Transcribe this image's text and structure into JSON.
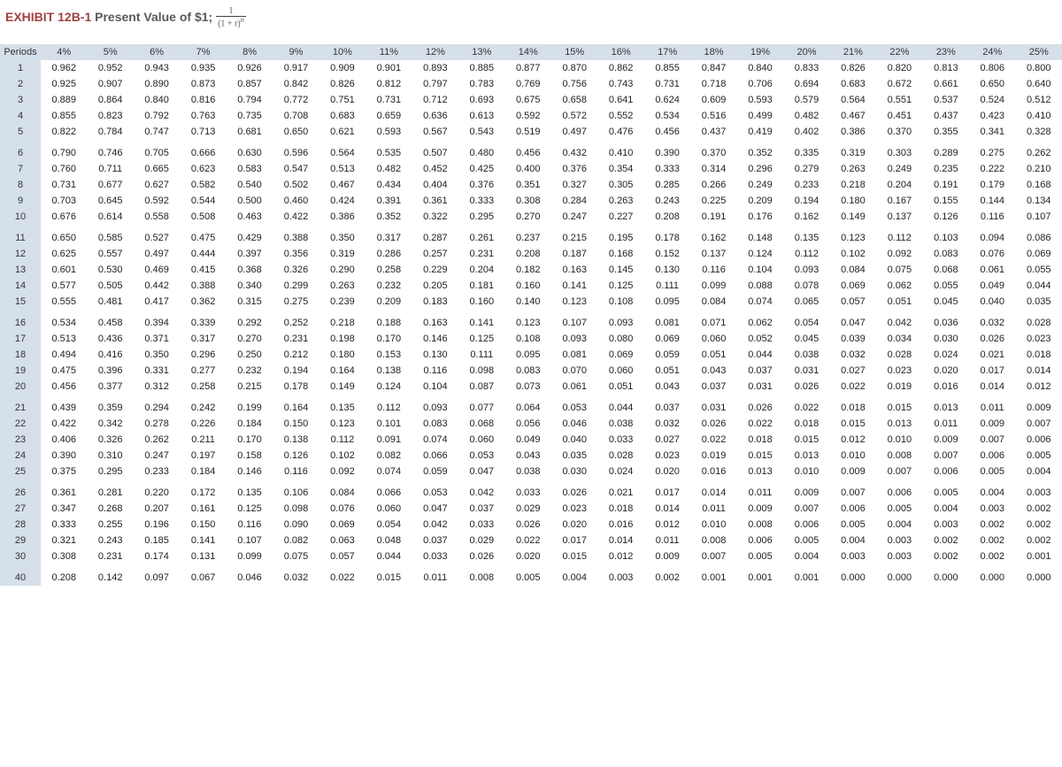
{
  "title": {
    "label": "EXHIBIT 12B-1",
    "caption": "Present Value of $1;",
    "formula_html": "<span style='display:inline-block;vertical-align:middle;text-align:center;line-height:1'><span style='display:block;border-bottom:1px solid #444;font-size:10px;padding:0 2px'>1</span><span style='display:block;font-size:10px;padding:0 2px'>(1 + r)<sup>n</sup></span></span>"
  },
  "columns": [
    "Periods",
    "4%",
    "5%",
    "6%",
    "7%",
    "8%",
    "9%",
    "10%",
    "11%",
    "12%",
    "13%",
    "14%",
    "15%",
    "16%",
    "17%",
    "18%",
    "19%",
    "20%",
    "21%",
    "22%",
    "23%",
    "24%",
    "25%"
  ],
  "breaks_after": [
    5,
    10,
    15,
    20,
    25,
    30
  ],
  "rows": [
    [
      "1",
      "0.962",
      "0.952",
      "0.943",
      "0.935",
      "0.926",
      "0.917",
      "0.909",
      "0.901",
      "0.893",
      "0.885",
      "0.877",
      "0.870",
      "0.862",
      "0.855",
      "0.847",
      "0.840",
      "0.833",
      "0.826",
      "0.820",
      "0.813",
      "0.806",
      "0.800"
    ],
    [
      "2",
      "0.925",
      "0.907",
      "0.890",
      "0.873",
      "0.857",
      "0.842",
      "0.826",
      "0.812",
      "0.797",
      "0.783",
      "0.769",
      "0.756",
      "0.743",
      "0.731",
      "0.718",
      "0.706",
      "0.694",
      "0.683",
      "0.672",
      "0.661",
      "0.650",
      "0.640"
    ],
    [
      "3",
      "0.889",
      "0.864",
      "0.840",
      "0.816",
      "0.794",
      "0.772",
      "0.751",
      "0.731",
      "0.712",
      "0.693",
      "0.675",
      "0.658",
      "0.641",
      "0.624",
      "0.609",
      "0.593",
      "0.579",
      "0.564",
      "0.551",
      "0.537",
      "0.524",
      "0.512"
    ],
    [
      "4",
      "0.855",
      "0.823",
      "0.792",
      "0.763",
      "0.735",
      "0.708",
      "0.683",
      "0.659",
      "0.636",
      "0.613",
      "0.592",
      "0.572",
      "0.552",
      "0.534",
      "0.516",
      "0.499",
      "0.482",
      "0.467",
      "0.451",
      "0.437",
      "0.423",
      "0.410"
    ],
    [
      "5",
      "0.822",
      "0.784",
      "0.747",
      "0.713",
      "0.681",
      "0.650",
      "0.621",
      "0.593",
      "0.567",
      "0.543",
      "0.519",
      "0.497",
      "0.476",
      "0.456",
      "0.437",
      "0.419",
      "0.402",
      "0.386",
      "0.370",
      "0.355",
      "0.341",
      "0.328"
    ],
    [
      "6",
      "0.790",
      "0.746",
      "0.705",
      "0.666",
      "0.630",
      "0.596",
      "0.564",
      "0.535",
      "0.507",
      "0.480",
      "0.456",
      "0.432",
      "0.410",
      "0.390",
      "0.370",
      "0.352",
      "0.335",
      "0.319",
      "0.303",
      "0.289",
      "0.275",
      "0.262"
    ],
    [
      "7",
      "0.760",
      "0.711",
      "0.665",
      "0.623",
      "0.583",
      "0.547",
      "0.513",
      "0.482",
      "0.452",
      "0.425",
      "0.400",
      "0.376",
      "0.354",
      "0.333",
      "0.314",
      "0.296",
      "0.279",
      "0.263",
      "0.249",
      "0.235",
      "0.222",
      "0.210"
    ],
    [
      "8",
      "0.731",
      "0.677",
      "0.627",
      "0.582",
      "0.540",
      "0.502",
      "0.467",
      "0.434",
      "0.404",
      "0.376",
      "0.351",
      "0.327",
      "0.305",
      "0.285",
      "0.266",
      "0.249",
      "0.233",
      "0.218",
      "0.204",
      "0.191",
      "0.179",
      "0.168"
    ],
    [
      "9",
      "0.703",
      "0.645",
      "0.592",
      "0.544",
      "0.500",
      "0.460",
      "0.424",
      "0.391",
      "0.361",
      "0.333",
      "0.308",
      "0.284",
      "0.263",
      "0.243",
      "0.225",
      "0.209",
      "0.194",
      "0.180",
      "0.167",
      "0.155",
      "0.144",
      "0.134"
    ],
    [
      "10",
      "0.676",
      "0.614",
      "0.558",
      "0.508",
      "0.463",
      "0.422",
      "0.386",
      "0.352",
      "0.322",
      "0.295",
      "0.270",
      "0.247",
      "0.227",
      "0.208",
      "0.191",
      "0.176",
      "0.162",
      "0.149",
      "0.137",
      "0.126",
      "0.116",
      "0.107"
    ],
    [
      "11",
      "0.650",
      "0.585",
      "0.527",
      "0.475",
      "0.429",
      "0.388",
      "0.350",
      "0.317",
      "0.287",
      "0.261",
      "0.237",
      "0.215",
      "0.195",
      "0.178",
      "0.162",
      "0.148",
      "0.135",
      "0.123",
      "0.112",
      "0.103",
      "0.094",
      "0.086"
    ],
    [
      "12",
      "0.625",
      "0.557",
      "0.497",
      "0.444",
      "0.397",
      "0.356",
      "0.319",
      "0.286",
      "0.257",
      "0.231",
      "0.208",
      "0.187",
      "0.168",
      "0.152",
      "0.137",
      "0.124",
      "0.112",
      "0.102",
      "0.092",
      "0.083",
      "0.076",
      "0.069"
    ],
    [
      "13",
      "0.601",
      "0.530",
      "0.469",
      "0.415",
      "0.368",
      "0.326",
      "0.290",
      "0.258",
      "0.229",
      "0.204",
      "0.182",
      "0.163",
      "0.145",
      "0.130",
      "0.116",
      "0.104",
      "0.093",
      "0.084",
      "0.075",
      "0.068",
      "0.061",
      "0.055"
    ],
    [
      "14",
      "0.577",
      "0.505",
      "0.442",
      "0.388",
      "0.340",
      "0.299",
      "0.263",
      "0.232",
      "0.205",
      "0.181",
      "0.160",
      "0.141",
      "0.125",
      "0.111",
      "0.099",
      "0.088",
      "0.078",
      "0.069",
      "0.062",
      "0.055",
      "0.049",
      "0.044"
    ],
    [
      "15",
      "0.555",
      "0.481",
      "0.417",
      "0.362",
      "0.315",
      "0.275",
      "0.239",
      "0.209",
      "0.183",
      "0.160",
      "0.140",
      "0.123",
      "0.108",
      "0.095",
      "0.084",
      "0.074",
      "0.065",
      "0.057",
      "0.051",
      "0.045",
      "0.040",
      "0.035"
    ],
    [
      "16",
      "0.534",
      "0.458",
      "0.394",
      "0.339",
      "0.292",
      "0.252",
      "0.218",
      "0.188",
      "0.163",
      "0.141",
      "0.123",
      "0.107",
      "0.093",
      "0.081",
      "0.071",
      "0.062",
      "0.054",
      "0.047",
      "0.042",
      "0.036",
      "0.032",
      "0.028"
    ],
    [
      "17",
      "0.513",
      "0.436",
      "0.371",
      "0.317",
      "0.270",
      "0.231",
      "0.198",
      "0.170",
      "0.146",
      "0.125",
      "0.108",
      "0.093",
      "0.080",
      "0.069",
      "0.060",
      "0.052",
      "0.045",
      "0.039",
      "0.034",
      "0.030",
      "0.026",
      "0.023"
    ],
    [
      "18",
      "0.494",
      "0.416",
      "0.350",
      "0.296",
      "0.250",
      "0.212",
      "0.180",
      "0.153",
      "0.130",
      "0.111",
      "0.095",
      "0.081",
      "0.069",
      "0.059",
      "0.051",
      "0.044",
      "0.038",
      "0.032",
      "0.028",
      "0.024",
      "0.021",
      "0.018"
    ],
    [
      "19",
      "0.475",
      "0.396",
      "0.331",
      "0.277",
      "0.232",
      "0.194",
      "0.164",
      "0.138",
      "0.116",
      "0.098",
      "0.083",
      "0.070",
      "0.060",
      "0.051",
      "0.043",
      "0.037",
      "0.031",
      "0.027",
      "0.023",
      "0.020",
      "0.017",
      "0.014"
    ],
    [
      "20",
      "0.456",
      "0.377",
      "0.312",
      "0.258",
      "0.215",
      "0.178",
      "0.149",
      "0.124",
      "0.104",
      "0.087",
      "0.073",
      "0.061",
      "0.051",
      "0.043",
      "0.037",
      "0.031",
      "0.026",
      "0.022",
      "0.019",
      "0.016",
      "0.014",
      "0.012"
    ],
    [
      "21",
      "0.439",
      "0.359",
      "0.294",
      "0.242",
      "0.199",
      "0.164",
      "0.135",
      "0.112",
      "0.093",
      "0.077",
      "0.064",
      "0.053",
      "0.044",
      "0.037",
      "0.031",
      "0.026",
      "0.022",
      "0.018",
      "0.015",
      "0.013",
      "0.011",
      "0.009"
    ],
    [
      "22",
      "0.422",
      "0.342",
      "0.278",
      "0.226",
      "0.184",
      "0.150",
      "0.123",
      "0.101",
      "0.083",
      "0.068",
      "0.056",
      "0.046",
      "0.038",
      "0.032",
      "0.026",
      "0.022",
      "0.018",
      "0.015",
      "0.013",
      "0.011",
      "0.009",
      "0.007"
    ],
    [
      "23",
      "0.406",
      "0.326",
      "0.262",
      "0.211",
      "0.170",
      "0.138",
      "0.112",
      "0.091",
      "0.074",
      "0.060",
      "0.049",
      "0.040",
      "0.033",
      "0.027",
      "0.022",
      "0.018",
      "0.015",
      "0.012",
      "0.010",
      "0.009",
      "0.007",
      "0.006"
    ],
    [
      "24",
      "0.390",
      "0.310",
      "0.247",
      "0.197",
      "0.158",
      "0.126",
      "0.102",
      "0.082",
      "0.066",
      "0.053",
      "0.043",
      "0.035",
      "0.028",
      "0.023",
      "0.019",
      "0.015",
      "0.013",
      "0.010",
      "0.008",
      "0.007",
      "0.006",
      "0.005"
    ],
    [
      "25",
      "0.375",
      "0.295",
      "0.233",
      "0.184",
      "0.146",
      "0.116",
      "0.092",
      "0.074",
      "0.059",
      "0.047",
      "0.038",
      "0.030",
      "0.024",
      "0.020",
      "0.016",
      "0.013",
      "0.010",
      "0.009",
      "0.007",
      "0.006",
      "0.005",
      "0.004"
    ],
    [
      "26",
      "0.361",
      "0.281",
      "0.220",
      "0.172",
      "0.135",
      "0.106",
      "0.084",
      "0.066",
      "0.053",
      "0.042",
      "0.033",
      "0.026",
      "0.021",
      "0.017",
      "0.014",
      "0.011",
      "0.009",
      "0.007",
      "0.006",
      "0.005",
      "0.004",
      "0.003"
    ],
    [
      "27",
      "0.347",
      "0.268",
      "0.207",
      "0.161",
      "0.125",
      "0.098",
      "0.076",
      "0.060",
      "0.047",
      "0.037",
      "0.029",
      "0.023",
      "0.018",
      "0.014",
      "0.011",
      "0.009",
      "0.007",
      "0.006",
      "0.005",
      "0.004",
      "0.003",
      "0.002"
    ],
    [
      "28",
      "0.333",
      "0.255",
      "0.196",
      "0.150",
      "0.116",
      "0.090",
      "0.069",
      "0.054",
      "0.042",
      "0.033",
      "0.026",
      "0.020",
      "0.016",
      "0.012",
      "0.010",
      "0.008",
      "0.006",
      "0.005",
      "0.004",
      "0.003",
      "0.002",
      "0.002"
    ],
    [
      "29",
      "0.321",
      "0.243",
      "0.185",
      "0.141",
      "0.107",
      "0.082",
      "0.063",
      "0.048",
      "0.037",
      "0.029",
      "0.022",
      "0.017",
      "0.014",
      "0.011",
      "0.008",
      "0.006",
      "0.005",
      "0.004",
      "0.003",
      "0.002",
      "0.002",
      "0.002"
    ],
    [
      "30",
      "0.308",
      "0.231",
      "0.174",
      "0.131",
      "0.099",
      "0.075",
      "0.057",
      "0.044",
      "0.033",
      "0.026",
      "0.020",
      "0.015",
      "0.012",
      "0.009",
      "0.007",
      "0.005",
      "0.004",
      "0.003",
      "0.003",
      "0.002",
      "0.002",
      "0.001"
    ],
    [
      "40",
      "0.208",
      "0.142",
      "0.097",
      "0.067",
      "0.046",
      "0.032",
      "0.022",
      "0.015",
      "0.011",
      "0.008",
      "0.005",
      "0.004",
      "0.003",
      "0.002",
      "0.001",
      "0.001",
      "0.001",
      "0.000",
      "0.000",
      "0.000",
      "0.000",
      "0.000"
    ]
  ],
  "style": {
    "header_bg": "#d6e0ea",
    "body_bg": "#ffffff",
    "font_size": 11,
    "title_color": "#a04040"
  }
}
